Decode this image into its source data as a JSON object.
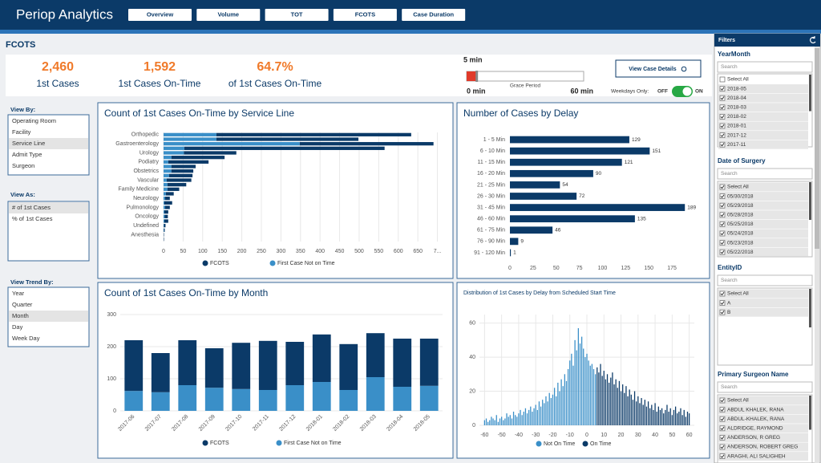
{
  "header": {
    "title": "Periop Analytics",
    "nav": [
      "Overview",
      "Volume",
      "TOT",
      "FCOTS",
      "Case Duration"
    ]
  },
  "page_title": "FCOTS",
  "kpis": [
    {
      "value": "2,460",
      "label": "1st Cases"
    },
    {
      "value": "1,592",
      "label": "1st Cases On-Time"
    },
    {
      "value": "64.7%",
      "label": "of 1st Cases On-Time"
    }
  ],
  "grace_period": {
    "value_label": "5 min",
    "value": 5,
    "min": 0,
    "max": 60,
    "min_label": "0 min",
    "max_label": "60 min",
    "label": "Grace Period"
  },
  "details_button": "View Case Details",
  "weekdays": {
    "label": "Weekdays Only:",
    "off": "OFF",
    "on": "ON",
    "state": true
  },
  "view_by": {
    "label": "View By:",
    "options": [
      "Operating Room",
      "Facility",
      "Service Line",
      "Admit Type",
      "Surgeon"
    ],
    "selected": 2
  },
  "view_as": {
    "label": "View As:",
    "options": [
      "# of 1st Cases",
      "% of 1st Cases"
    ],
    "selected": 0
  },
  "view_trend_by": {
    "label": "View Trend By:",
    "options": [
      "Year",
      "Quarter",
      "Month",
      "Day",
      "Week Day"
    ],
    "selected": 2
  },
  "filters": {
    "title": "Filters",
    "sections": [
      {
        "title": "YearMonth",
        "search": "Search",
        "items": [
          {
            "label": "Select All",
            "checked": false
          },
          {
            "label": "2018-05",
            "checked": true
          },
          {
            "label": "2018-04",
            "checked": true
          },
          {
            "label": "2018-03",
            "checked": true
          },
          {
            "label": "2018-02",
            "checked": true
          },
          {
            "label": "2018-01",
            "checked": true
          },
          {
            "label": "2017-12",
            "checked": true
          },
          {
            "label": "2017-11",
            "checked": true
          }
        ]
      },
      {
        "title": "Date of Surgery",
        "search": "Search",
        "items": [
          {
            "label": "Select All",
            "checked": true
          },
          {
            "label": "05/30/2018",
            "checked": true
          },
          {
            "label": "05/29/2018",
            "checked": true
          },
          {
            "label": "05/28/2018",
            "checked": true
          },
          {
            "label": "05/25/2018",
            "checked": true
          },
          {
            "label": "05/24/2018",
            "checked": true
          },
          {
            "label": "05/23/2018",
            "checked": true
          },
          {
            "label": "05/22/2018",
            "checked": true
          }
        ]
      },
      {
        "title": "EntityID",
        "search": "Search",
        "items": [
          {
            "label": "Select All",
            "checked": true
          },
          {
            "label": "A",
            "checked": true
          },
          {
            "label": "B",
            "checked": true
          }
        ]
      },
      {
        "title": "Primary Surgeon Name",
        "search": "Search",
        "items": [
          {
            "label": "Select All",
            "checked": true
          },
          {
            "label": "ABDUL KHALEK, RANA",
            "checked": true
          },
          {
            "label": "ABDUL-KHALEK, RANA",
            "checked": true
          },
          {
            "label": "ALDRIDGE, RAYMOND",
            "checked": true
          },
          {
            "label": "ANDERSON, R GREG",
            "checked": true
          },
          {
            "label": "ANDERSON, ROBERT GREG",
            "checked": true
          },
          {
            "label": "ARAGHI, ALI SALIGHEH",
            "checked": true
          }
        ]
      }
    ]
  },
  "chart_data": [
    {
      "type": "bar",
      "orientation": "horizontal",
      "stacked": true,
      "grid": true,
      "title": "Count of 1st Cases On-Time by Service Line",
      "categories": [
        "Orthopedic",
        null,
        "Gastroenterology",
        null,
        "Urology",
        null,
        "Podiatry",
        null,
        "Obstetrics",
        null,
        "Vascular",
        null,
        "Family Medicine",
        null,
        "Neurology",
        null,
        "Pulmonology",
        null,
        "Oncology",
        null,
        "Undefined",
        null,
        "Anesthesia",
        null
      ],
      "series": [
        {
          "name": "FCOTS",
          "color": "#0b3a68",
          "values": [
            498,
            363,
            342,
            512,
            134,
            136,
            103,
            62,
            56,
            60,
            63,
            48,
            30,
            20,
            12,
            20,
            12,
            10,
            8,
            10,
            4,
            2,
            1,
            1
          ]
        },
        {
          "name": "First Case Not on Time",
          "color": "#3a8fc8",
          "values": [
            135,
            135,
            348,
            53,
            52,
            20,
            12,
            20,
            20,
            14,
            8,
            10,
            10,
            6,
            4,
            2,
            4,
            2,
            3,
            2,
            1,
            1,
            0,
            0
          ]
        }
      ],
      "xlim": [
        0,
        705
      ],
      "xticks": [
        0,
        50,
        100,
        150,
        200,
        250,
        300,
        350,
        400,
        450,
        500,
        550,
        600,
        650,
        {
          "value": 700,
          "label": "7..."
        }
      ]
    },
    {
      "type": "bar",
      "orientation": "horizontal",
      "show_values": true,
      "grid": false,
      "title": "Number of Cases by Delay",
      "color": "#0b3a68",
      "categories": [
        "1 - 5 Min",
        "6 - 10 Min",
        "11 - 15 Min",
        "16 - 20 Min",
        "21 - 25 Min",
        "26 - 30 Min",
        "31 - 45 Min",
        "46 - 60 Min",
        "61 - 75 Min",
        "76 - 90 Min",
        "91 - 120 Min"
      ],
      "values": [
        129,
        151,
        121,
        90,
        54,
        72,
        189,
        135,
        46,
        9,
        1
      ],
      "xlim": [
        0,
        194
      ],
      "xticks": [
        0,
        25,
        50,
        75,
        100,
        125,
        150,
        175
      ]
    },
    {
      "type": "bar",
      "orientation": "vertical",
      "stacked": true,
      "grid": true,
      "title": "Count of 1st Cases On-Time by Month",
      "categories": [
        "2017-06",
        "2017-07",
        "2017-08",
        "2017-09",
        "2017-10",
        "2017-11",
        "2017-12",
        "2018-01",
        "2018-02",
        "2018-03",
        "2018-04",
        "2018-05"
      ],
      "series": [
        {
          "name": "FCOTS",
          "color": "#0b3a68",
          "values": [
            158,
            122,
            140,
            123,
            144,
            153,
            135,
            148,
            143,
            137,
            150,
            147
          ]
        },
        {
          "name": "First Case Not on Time",
          "color": "#3a8fc8",
          "values": [
            62,
            58,
            80,
            72,
            68,
            65,
            80,
            90,
            65,
            105,
            75,
            78
          ]
        }
      ],
      "ylim": [
        0,
        300
      ],
      "yticks": [
        0,
        100,
        200,
        300
      ]
    },
    {
      "type": "bar",
      "orientation": "vertical",
      "grid": true,
      "title": "Distribution of 1st Cases by Delay from Scheduled Start Time",
      "series": [
        {
          "name": "Not On Time",
          "color": "#3a8fc8",
          "x": [
            -60,
            -59,
            -58,
            -57,
            -56,
            -55,
            -54,
            -53,
            -52,
            -51,
            -50,
            -49,
            -48,
            -47,
            -46,
            -45,
            -44,
            -43,
            -42,
            -41,
            -40,
            -39,
            -38,
            -37,
            -36,
            -35,
            -34,
            -33,
            -32,
            -31,
            -30,
            -29,
            -28,
            -27,
            -26,
            -25,
            -24,
            -23,
            -22,
            -21,
            -20,
            -19,
            -18,
            -17,
            -16,
            -15,
            -14,
            -13,
            -12,
            -11,
            -10,
            -9,
            -8,
            -7,
            -6,
            -5,
            -4,
            -3,
            -2,
            -1,
            0,
            1,
            2,
            3,
            4,
            5
          ],
          "values": [
            3,
            4,
            2,
            3,
            5,
            4,
            3,
            6,
            2,
            4,
            5,
            3,
            4,
            7,
            5,
            6,
            4,
            8,
            6,
            5,
            7,
            9,
            6,
            8,
            10,
            7,
            9,
            11,
            8,
            10,
            12,
            9,
            14,
            11,
            15,
            13,
            17,
            14,
            19,
            16,
            18,
            22,
            17,
            25,
            20,
            27,
            23,
            30,
            26,
            33,
            38,
            42,
            35,
            50,
            44,
            57,
            48,
            52,
            45,
            40,
            42,
            38,
            35,
            36,
            33,
            30
          ]
        },
        {
          "name": "On Time",
          "color": "#0b3a68",
          "x": [
            6,
            7,
            8,
            9,
            10,
            11,
            12,
            13,
            14,
            15,
            16,
            17,
            18,
            19,
            20,
            21,
            22,
            23,
            24,
            25,
            26,
            27,
            28,
            29,
            30,
            31,
            32,
            33,
            34,
            35,
            36,
            37,
            38,
            39,
            40,
            41,
            42,
            43,
            44,
            45,
            46,
            47,
            48,
            49,
            50,
            51,
            52,
            53,
            54,
            55,
            56,
            57,
            58,
            59,
            60
          ],
          "values": [
            34,
            31,
            36,
            29,
            32,
            27,
            30,
            25,
            28,
            31,
            24,
            27,
            22,
            26,
            20,
            24,
            19,
            23,
            17,
            21,
            18,
            15,
            20,
            14,
            17,
            13,
            16,
            12,
            15,
            11,
            14,
            10,
            12,
            9,
            13,
            8,
            11,
            9,
            10,
            7,
            9,
            12,
            8,
            10,
            6,
            9,
            11,
            7,
            8,
            10,
            6,
            9,
            5,
            8,
            7
          ]
        }
      ],
      "xlim": [
        -63,
        63
      ],
      "xticks": [
        -60,
        -50,
        -40,
        -30,
        -20,
        -10,
        0,
        10,
        20,
        30,
        40,
        50,
        60
      ],
      "ylim": [
        0,
        65
      ],
      "yticks": [
        0,
        20,
        40,
        60
      ]
    }
  ]
}
